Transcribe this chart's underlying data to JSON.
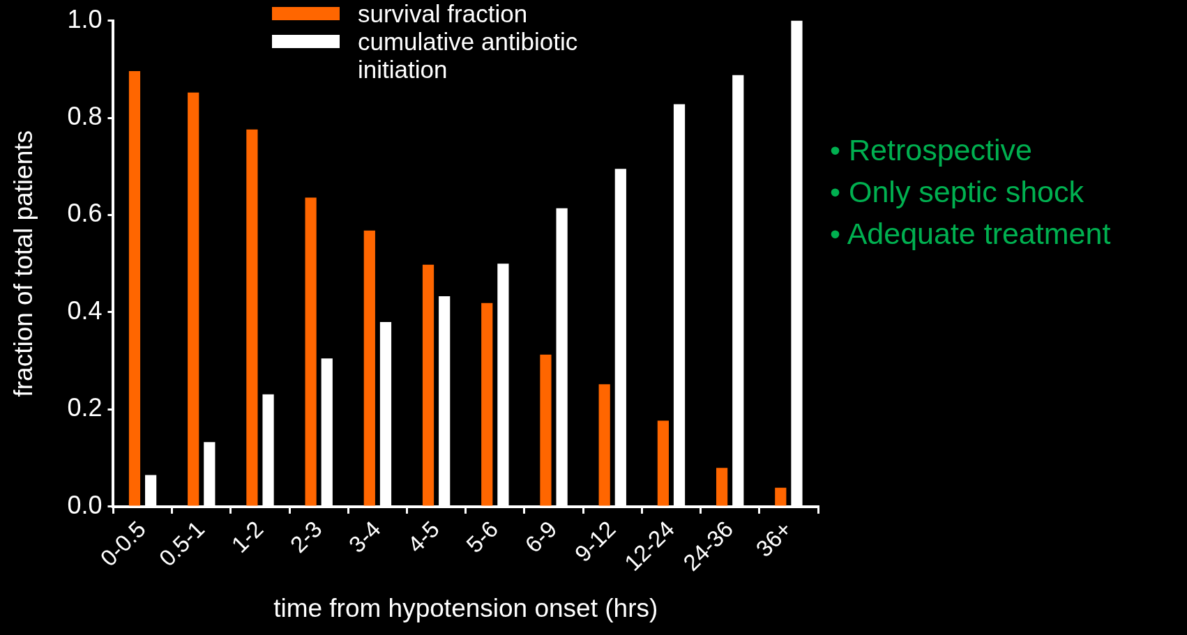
{
  "chart_data": {
    "type": "bar",
    "xlabel": "time from hypotension onset (hrs)",
    "ylabel": "fraction of total patients",
    "categories": [
      "0-0.5",
      "0.5-1",
      "1-2",
      "2-3",
      "3-4",
      "4-5",
      "5-6",
      "6-9",
      "9-12",
      "12-24",
      "24-36",
      "36+"
    ],
    "series": [
      {
        "name": "survival fraction",
        "color": "#ff6600",
        "values": [
          0.896,
          0.852,
          0.776,
          0.636,
          0.568,
          0.498,
          0.419,
          0.313,
          0.252,
          0.177,
          0.08,
          0.039
        ]
      },
      {
        "name": "cumulative antibiotic initiation",
        "color": "#ffffff",
        "values": [
          0.065,
          0.133,
          0.231,
          0.305,
          0.38,
          0.433,
          0.5,
          0.614,
          0.695,
          0.828,
          0.888,
          1.0
        ]
      }
    ],
    "ylim": [
      0,
      1
    ],
    "yticks": [
      {
        "value": 0,
        "label": "0.0"
      },
      {
        "value": 0.2,
        "label": "0.2"
      },
      {
        "value": 0.4,
        "label": "0.4"
      },
      {
        "value": 0.6,
        "label": "0.6"
      },
      {
        "value": 0.8,
        "label": "0.8"
      },
      {
        "value": 1,
        "label": "1.0"
      }
    ],
    "grid": false,
    "legend": "top",
    "annotations": [
      "• Retrospective",
      "• Only septic shock",
      "• Adequate treatment"
    ]
  }
}
